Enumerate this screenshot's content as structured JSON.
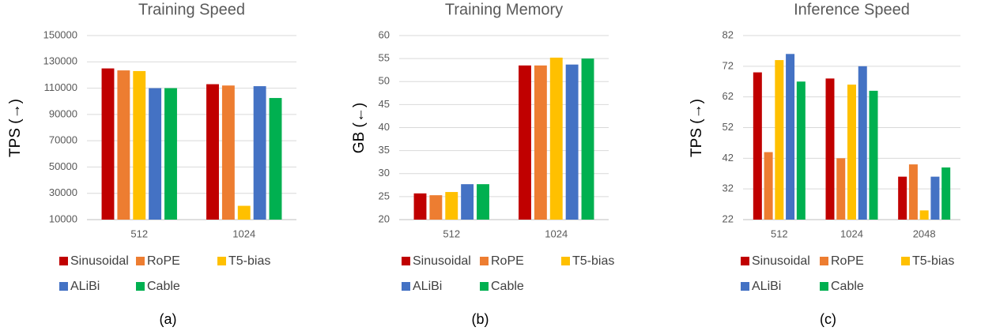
{
  "chart_data": [
    {
      "type": "bar",
      "title": "Training Speed",
      "y_label": "TPS (→)",
      "caption": "(a)",
      "categories": [
        "512",
        "1024"
      ],
      "series": [
        {
          "name": "Sinusoidal",
          "color": "#c00000",
          "values": [
            125000,
            113000
          ]
        },
        {
          "name": "RoPE",
          "color": "#ed7d31",
          "values": [
            123500,
            112000
          ]
        },
        {
          "name": "T5-bias",
          "color": "#ffc000",
          "values": [
            123000,
            20500
          ]
        },
        {
          "name": "ALiBi",
          "color": "#4472c4",
          "values": [
            110000,
            111500
          ]
        },
        {
          "name": "Cable",
          "color": "#00b050",
          "values": [
            110000,
            102500
          ]
        }
      ],
      "ylim": [
        10000,
        150000
      ],
      "yticks": [
        10000,
        30000,
        50000,
        70000,
        90000,
        110000,
        130000,
        150000
      ],
      "grid": true,
      "legend": "bottom"
    },
    {
      "type": "bar",
      "title": "Training Memory",
      "y_label": "GB (←)",
      "caption": "(b)",
      "categories": [
        "512",
        "1024"
      ],
      "series": [
        {
          "name": "Sinusoidal",
          "color": "#c00000",
          "values": [
            25.7,
            53.5
          ]
        },
        {
          "name": "RoPE",
          "color": "#ed7d31",
          "values": [
            25.3,
            53.5
          ]
        },
        {
          "name": "T5-bias",
          "color": "#ffc000",
          "values": [
            26,
            55.2
          ]
        },
        {
          "name": "ALiBi",
          "color": "#4472c4",
          "values": [
            27.7,
            53.7
          ]
        },
        {
          "name": "Cable",
          "color": "#00b050",
          "values": [
            27.7,
            55
          ]
        }
      ],
      "ylim": [
        20,
        60
      ],
      "yticks": [
        20,
        25,
        30,
        35,
        40,
        45,
        50,
        55,
        60
      ],
      "grid": true,
      "legend": "bottom"
    },
    {
      "type": "bar",
      "title": "Inference Speed",
      "y_label": "TPS (→)",
      "caption": "(c)",
      "categories": [
        "512",
        "1024",
        "2048"
      ],
      "series": [
        {
          "name": "Sinusoidal",
          "color": "#c00000",
          "values": [
            70,
            68,
            36
          ]
        },
        {
          "name": "RoPE",
          "color": "#ed7d31",
          "values": [
            44,
            42,
            40
          ]
        },
        {
          "name": "T5-bias",
          "color": "#ffc000",
          "values": [
            74,
            66,
            25
          ]
        },
        {
          "name": "ALiBi",
          "color": "#4472c4",
          "values": [
            76,
            72,
            36
          ]
        },
        {
          "name": "Cable",
          "color": "#00b050",
          "values": [
            67,
            64,
            39
          ]
        }
      ],
      "ylim": [
        22,
        82
      ],
      "yticks": [
        22,
        32,
        42,
        52,
        62,
        72,
        82
      ],
      "grid": true,
      "legend": "bottom"
    }
  ]
}
